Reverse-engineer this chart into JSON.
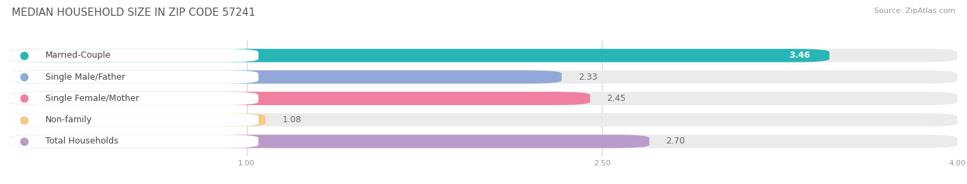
{
  "title": "MEDIAN HOUSEHOLD SIZE IN ZIP CODE 57241",
  "source": "Source: ZipAtlas.com",
  "categories": [
    "Married-Couple",
    "Single Male/Father",
    "Single Female/Mother",
    "Non-family",
    "Total Households"
  ],
  "values": [
    3.46,
    2.33,
    2.45,
    1.08,
    2.7
  ],
  "bar_colors": [
    "#29b5b5",
    "#92a8d8",
    "#f07fa0",
    "#f5c98a",
    "#b99cca"
  ],
  "bar_bg_colors": [
    "#ebebeb",
    "#ebebeb",
    "#ebebeb",
    "#ebebeb",
    "#ebebeb"
  ],
  "value_inside": [
    true,
    false,
    false,
    false,
    false
  ],
  "xlim": [
    0,
    4.0
  ],
  "xticks": [
    1.0,
    2.5,
    4.0
  ],
  "title_fontsize": 11,
  "label_fontsize": 9,
  "value_fontsize": 9,
  "source_fontsize": 8,
  "bar_height": 0.62,
  "bg_color": "#ffffff"
}
